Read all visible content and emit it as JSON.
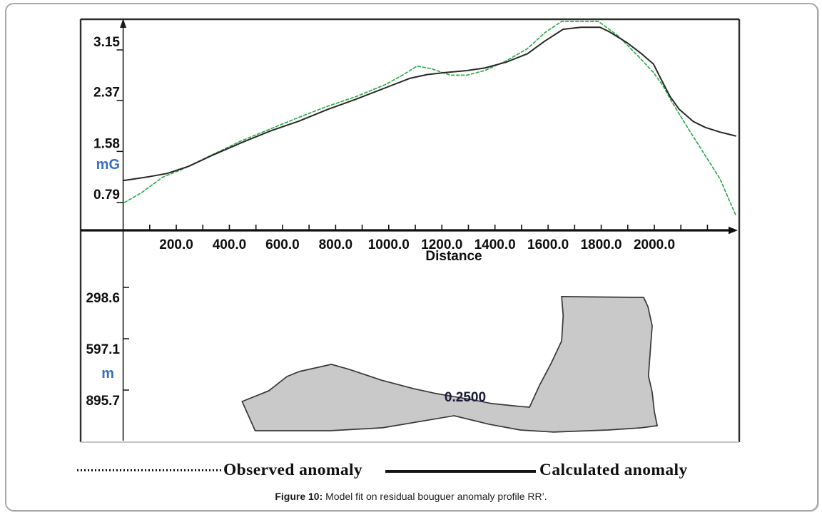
{
  "figure": {
    "legend": {
      "observed_label": "Observed anomaly",
      "calculated_label": "Calculated anomaly"
    },
    "caption": {
      "bold": "Figure 10:",
      "text": " Model fit on residual bouguer anomaly profile RR’."
    }
  },
  "colors": {
    "observed": "#30ab4d",
    "calculated": "#282828",
    "model_fill": "#c9c9c9",
    "model_stroke": "#383838",
    "unit_label_blue": "#3a6fc4",
    "density_label": "#1c1c3c"
  },
  "chart_data": [
    {
      "type": "line",
      "panel": "anomaly-profile",
      "title": "",
      "xlabel": "Distance",
      "ylabel_unit": "mG",
      "grid": false,
      "xlim": [
        -160,
        2320
      ],
      "ylim": [
        0.36,
        3.62
      ],
      "x_ticks": {
        "values": [
          200,
          400,
          600,
          800,
          1000,
          1200,
          1400,
          1600,
          1800,
          2000
        ],
        "labels": [
          "200.0",
          "400.0",
          "600.0",
          "800.0",
          "1000.0",
          "1200.0",
          "1400.0",
          "1600.0",
          "1800.0",
          "2000.0"
        ]
      },
      "y_ticks": {
        "values": [
          3.15,
          2.37,
          1.58,
          0.79
        ],
        "labels": [
          "3.15",
          "2.37",
          "1.58",
          "0.79"
        ]
      },
      "series": [
        {
          "name": "Observed anomaly",
          "style": "dashed",
          "color": "#30ab4d",
          "points": [
            [
              5,
              0.79
            ],
            [
              72,
              0.95
            ],
            [
              148,
              1.18
            ],
            [
              220,
              1.3
            ],
            [
              341,
              1.54
            ],
            [
              448,
              1.75
            ],
            [
              556,
              1.93
            ],
            [
              663,
              2.11
            ],
            [
              770,
              2.28
            ],
            [
              878,
              2.43
            ],
            [
              985,
              2.61
            ],
            [
              1052,
              2.76
            ],
            [
              1106,
              2.9
            ],
            [
              1160,
              2.86
            ],
            [
              1232,
              2.76
            ],
            [
              1294,
              2.76
            ],
            [
              1361,
              2.83
            ],
            [
              1442,
              2.98
            ],
            [
              1522,
              3.17
            ],
            [
              1589,
              3.42
            ],
            [
              1651,
              3.59
            ],
            [
              1790,
              3.59
            ],
            [
              1863,
              3.37
            ],
            [
              1938,
              3.06
            ],
            [
              1997,
              2.8
            ],
            [
              2032,
              2.6
            ],
            [
              2067,
              2.34
            ],
            [
              2131,
              1.91
            ],
            [
              2188,
              1.54
            ],
            [
              2247,
              1.16
            ],
            [
              2306,
              0.6
            ]
          ]
        },
        {
          "name": "Calculated anomaly",
          "style": "solid",
          "color": "#282828",
          "points": [
            [
              0,
              1.13
            ],
            [
              99,
              1.19
            ],
            [
              166,
              1.24
            ],
            [
              247,
              1.35
            ],
            [
              341,
              1.53
            ],
            [
              448,
              1.72
            ],
            [
              556,
              1.9
            ],
            [
              663,
              2.05
            ],
            [
              770,
              2.23
            ],
            [
              878,
              2.39
            ],
            [
              985,
              2.56
            ],
            [
              1079,
              2.71
            ],
            [
              1146,
              2.77
            ],
            [
              1213,
              2.8
            ],
            [
              1294,
              2.83
            ],
            [
              1361,
              2.87
            ],
            [
              1442,
              2.96
            ],
            [
              1522,
              3.09
            ],
            [
              1589,
              3.29
            ],
            [
              1657,
              3.47
            ],
            [
              1724,
              3.5
            ],
            [
              1796,
              3.5
            ],
            [
              1831,
              3.43
            ],
            [
              1898,
              3.26
            ],
            [
              1952,
              3.09
            ],
            [
              1997,
              2.93
            ],
            [
              2024,
              2.71
            ],
            [
              2059,
              2.43
            ],
            [
              2094,
              2.23
            ],
            [
              2148,
              2.04
            ],
            [
              2193,
              1.95
            ],
            [
              2247,
              1.88
            ],
            [
              2306,
              1.82
            ]
          ]
        }
      ]
    },
    {
      "type": "area",
      "panel": "model-cross-section",
      "ylabel_unit": "m",
      "ylim": [
        0,
        1198
      ],
      "y_ticks": {
        "values": [
          298.6,
          597.1,
          895.7
        ],
        "labels": [
          "298.6",
          "597.1",
          "895.7"
        ]
      },
      "density_label": {
        "text": "0.2500",
        "anchor": [
          1288,
          933
        ]
      },
      "polygon": [
        [
          448,
          962
        ],
        [
          548,
          900
        ],
        [
          617,
          817
        ],
        [
          663,
          788
        ],
        [
          784,
          746
        ],
        [
          851,
          775
        ],
        [
          972,
          838
        ],
        [
          1093,
          887
        ],
        [
          1179,
          916
        ],
        [
          1308,
          950
        ],
        [
          1388,
          974
        ],
        [
          1495,
          991
        ],
        [
          1530,
          995
        ],
        [
          1568,
          867
        ],
        [
          1611,
          742
        ],
        [
          1651,
          610
        ],
        [
          1657,
          464
        ],
        [
          1651,
          352
        ],
        [
          1960,
          357
        ],
        [
          1976,
          411
        ],
        [
          1992,
          522
        ],
        [
          1984,
          688
        ],
        [
          1978,
          813
        ],
        [
          1992,
          908
        ],
        [
          2000,
          1020
        ],
        [
          2011,
          1103
        ],
        [
          1952,
          1115
        ],
        [
          1826,
          1128
        ],
        [
          1621,
          1140
        ],
        [
          1495,
          1128
        ],
        [
          1379,
          1095
        ],
        [
          1246,
          1045
        ],
        [
          977,
          1115
        ],
        [
          778,
          1132
        ],
        [
          497,
          1132
        ]
      ]
    }
  ]
}
